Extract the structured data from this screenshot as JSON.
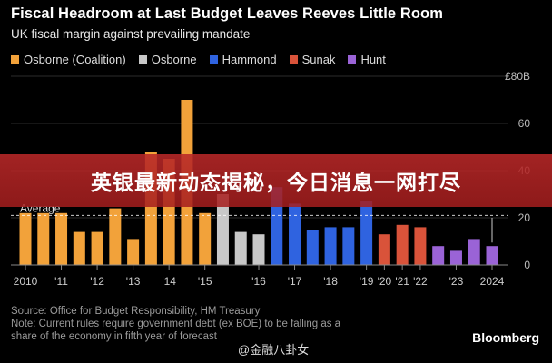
{
  "chart_data": {
    "type": "bar",
    "title": "Fiscal Headroom at Last Budget Leaves Reeves Little Room",
    "subtitle": "UK fiscal margin against prevailing mandate",
    "ylabel_unit": "£",
    "ytick_labels": [
      "£80B",
      "60",
      "40",
      "20",
      "0"
    ],
    "ytick_values": [
      80,
      60,
      40,
      20,
      0
    ],
    "ylim": [
      0,
      80
    ],
    "average": {
      "value": 21,
      "label": "Average"
    },
    "legend": [
      {
        "name": "Osborne (Coalition)",
        "color": "#f2a23a"
      },
      {
        "name": "Osborne",
        "color": "#c8c8c8"
      },
      {
        "name": "Hammond",
        "color": "#2f63e0"
      },
      {
        "name": "Sunak",
        "color": "#d9533a"
      },
      {
        "name": "Hunt",
        "color": "#9a63d6"
      }
    ],
    "bars": [
      {
        "group": "Osborne (Coalition)",
        "value": 22
      },
      {
        "group": "Osborne (Coalition)",
        "value": 22
      },
      {
        "group": "Osborne (Coalition)",
        "value": 22
      },
      {
        "group": "Osborne (Coalition)",
        "value": 14
      },
      {
        "group": "Osborne (Coalition)",
        "value": 14
      },
      {
        "group": "Osborne (Coalition)",
        "value": 24
      },
      {
        "group": "Osborne (Coalition)",
        "value": 11
      },
      {
        "group": "Osborne (Coalition)",
        "value": 48
      },
      {
        "group": "Osborne (Coalition)",
        "value": 45
      },
      {
        "group": "Osborne (Coalition)",
        "value": 70
      },
      {
        "group": "Osborne (Coalition)",
        "value": 22
      },
      {
        "group": "Osborne",
        "value": 30
      },
      {
        "group": "Osborne",
        "value": 14
      },
      {
        "group": "Osborne",
        "value": 13
      },
      {
        "group": "Hammond",
        "value": 33
      },
      {
        "group": "Hammond",
        "value": 26
      },
      {
        "group": "Hammond",
        "value": 15
      },
      {
        "group": "Hammond",
        "value": 16
      },
      {
        "group": "Hammond",
        "value": 16
      },
      {
        "group": "Hammond",
        "value": 27
      },
      {
        "group": "Sunak",
        "value": 13
      },
      {
        "group": "Sunak",
        "value": 17
      },
      {
        "group": "Sunak",
        "value": 16
      },
      {
        "group": "Hunt",
        "value": 8
      },
      {
        "group": "Hunt",
        "value": 6
      },
      {
        "group": "Hunt",
        "value": 11
      },
      {
        "group": "Hunt",
        "value": 8
      }
    ],
    "xtick_labels": [
      {
        "label": "2010",
        "bar": 0
      },
      {
        "label": "'11",
        "bar": 2
      },
      {
        "label": "'12",
        "bar": 4
      },
      {
        "label": "'13",
        "bar": 6
      },
      {
        "label": "'14",
        "bar": 8
      },
      {
        "label": "'15",
        "bar": 10
      },
      {
        "label": "'16",
        "bar": 13
      },
      {
        "label": "'17",
        "bar": 15
      },
      {
        "label": "'18",
        "bar": 17
      },
      {
        "label": "'19",
        "bar": 19
      },
      {
        "label": "'20",
        "bar": 20
      },
      {
        "label": "'21",
        "bar": 21
      },
      {
        "label": "'22",
        "bar": 22
      },
      {
        "label": "'23",
        "bar": 24
      },
      {
        "label": "2024",
        "bar": 26
      }
    ]
  },
  "source_line": "Source: Office for Budget Responsibility, HM Treasury",
  "note_line1": "Note: Current rules require government debt (ex BOE) to be falling as a",
  "note_line2": "share of the economy in fifth year of forecast",
  "brand": "Bloomberg",
  "overlay_banner": "英银最新动态揭秘，今日消息一网打尽",
  "watermark": "@金融八卦女"
}
